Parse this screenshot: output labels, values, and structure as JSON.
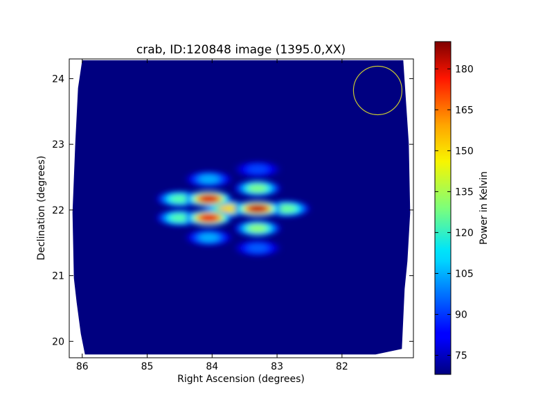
{
  "chart_data": {
    "type": "heatmap",
    "title": "crab, ID:120848 image (1395.0,XX)",
    "xlabel": "Right Ascension (degrees)",
    "ylabel": "Declination (degrees)",
    "xlim": [
      86.2,
      80.9
    ],
    "ylim": [
      19.75,
      24.3
    ],
    "x_ticks": [
      86,
      85,
      84,
      83,
      82
    ],
    "x_tick_labels": [
      "86",
      "85",
      "84",
      "83",
      "82"
    ],
    "y_ticks": [
      20,
      21,
      22,
      23,
      24
    ],
    "y_tick_labels": [
      "20",
      "21",
      "22",
      "23",
      "24"
    ],
    "grid": false,
    "background_value": 68,
    "footprint": {
      "ra_range": [
        80.95,
        86.15
      ],
      "dec_range": [
        19.8,
        24.28
      ]
    },
    "hotspots": [
      {
        "ra": 84.05,
        "dec": 22.17,
        "value": 180
      },
      {
        "ra": 84.05,
        "dec": 21.88,
        "value": 178
      },
      {
        "ra": 83.3,
        "dec": 22.02,
        "value": 183
      },
      {
        "ra": 83.3,
        "dec": 22.33,
        "value": 130
      },
      {
        "ra": 83.3,
        "dec": 21.72,
        "value": 132
      },
      {
        "ra": 84.5,
        "dec": 22.17,
        "value": 125
      },
      {
        "ra": 84.5,
        "dec": 21.88,
        "value": 125
      },
      {
        "ra": 83.75,
        "dec": 22.02,
        "value": 150
      },
      {
        "ra": 82.85,
        "dec": 22.02,
        "value": 128
      },
      {
        "ra": 84.05,
        "dec": 22.47,
        "value": 105
      },
      {
        "ra": 84.05,
        "dec": 21.58,
        "value": 105
      },
      {
        "ra": 83.3,
        "dec": 22.62,
        "value": 92
      },
      {
        "ra": 83.3,
        "dec": 21.42,
        "value": 95
      }
    ],
    "beam_circle": {
      "ra": 81.45,
      "dec": 23.82,
      "radius_deg": 0.37,
      "color": "#c8c832"
    },
    "colorbar": {
      "label": "Power in Kelvin",
      "min": 68,
      "max": 190,
      "ticks": [
        75,
        90,
        105,
        120,
        135,
        150,
        165,
        180
      ],
      "tick_labels": [
        "75",
        "90",
        "105",
        "120",
        "135",
        "150",
        "165",
        "180"
      ],
      "colormap": "jet"
    }
  }
}
